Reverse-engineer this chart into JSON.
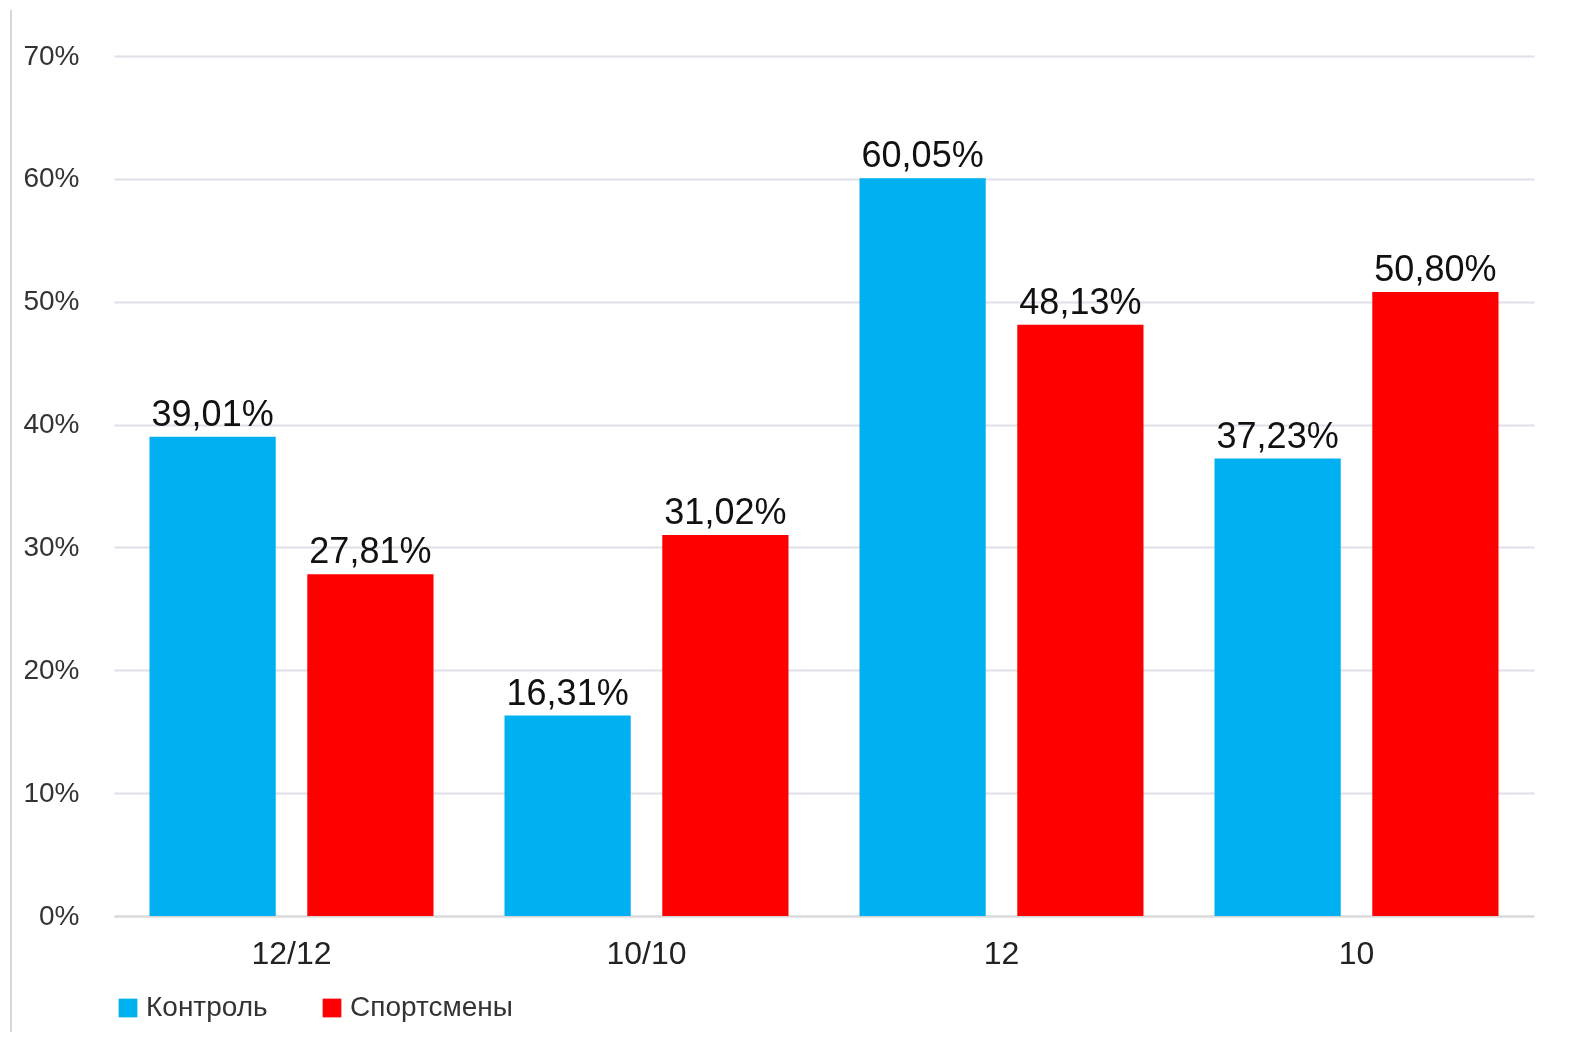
{
  "chart_data": {
    "type": "bar",
    "categories": [
      "12/12",
      "10/10",
      "12",
      "10"
    ],
    "series": [
      {
        "name": "Контроль",
        "color": "#00b0f0",
        "values": [
          39.01,
          16.31,
          60.05,
          37.23
        ],
        "value_labels": [
          "39,01%",
          "16,31%",
          "60,05%",
          "37,23%"
        ]
      },
      {
        "name": "Спортсмены",
        "color": "#ff0000",
        "values": [
          27.81,
          31.02,
          48.13,
          50.8
        ],
        "value_labels": [
          "27,81%",
          "31,02%",
          "48,13%",
          "50,80%"
        ]
      }
    ],
    "ylim": [
      0,
      70
    ],
    "yticks": [
      {
        "value": 0,
        "label": "0%"
      },
      {
        "value": 10,
        "label": "10%"
      },
      {
        "value": 20,
        "label": "20%"
      },
      {
        "value": 30,
        "label": "30%"
      },
      {
        "value": 40,
        "label": "40%"
      },
      {
        "value": 50,
        "label": "50%"
      },
      {
        "value": 60,
        "label": "60%"
      },
      {
        "value": 70,
        "label": "70%"
      }
    ],
    "grid": "y",
    "legend": "bottom"
  }
}
